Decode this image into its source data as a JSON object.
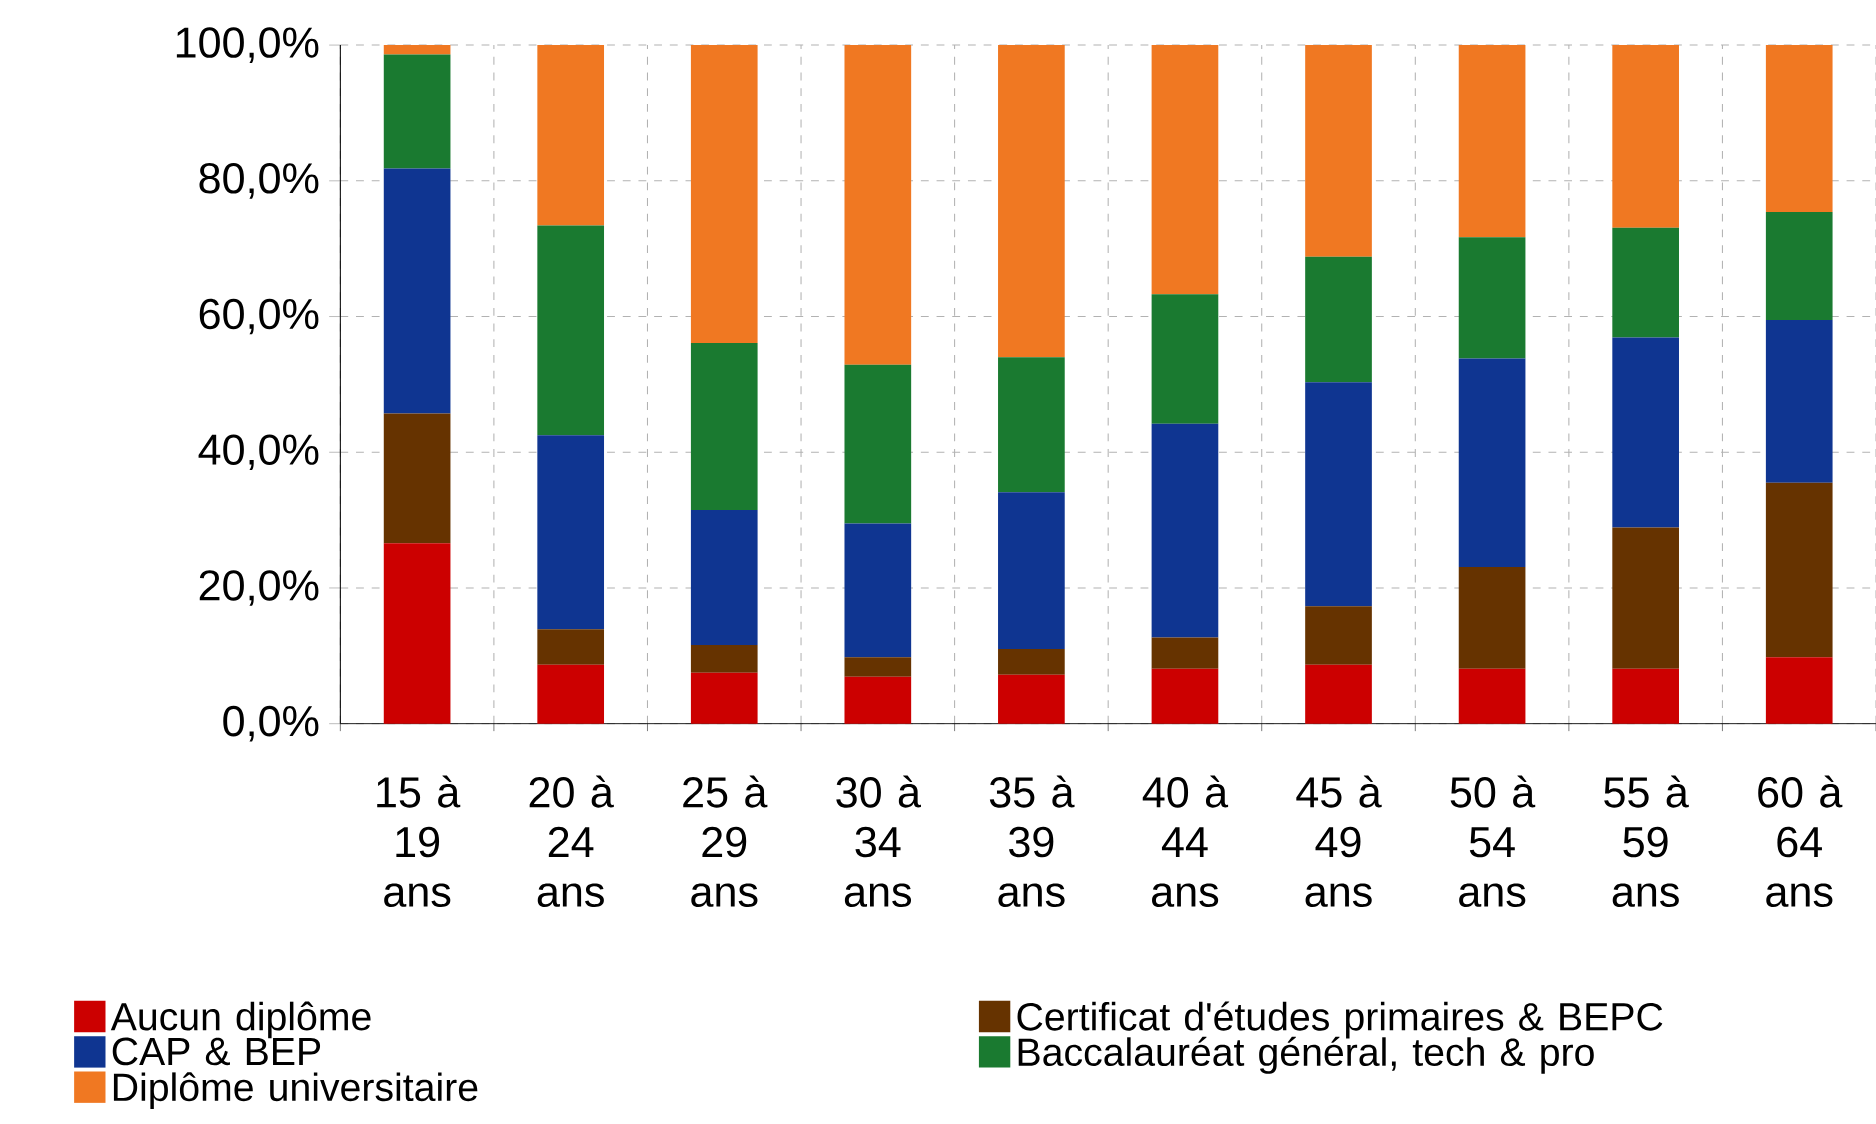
{
  "chart_data": {
    "type": "bar",
    "stacked": true,
    "grid": true,
    "legend": "bottom",
    "categories": [
      "15 à 19 ans",
      "20 à 24 ans",
      "25 à 29 ans",
      "30 à 34 ans",
      "35 à 39 ans",
      "40 à 44 ans",
      "45 à 49 ans",
      "50 à 54 ans",
      "55 à 59 ans",
      "60 à 64 ans"
    ],
    "ylim": [
      0,
      100
    ],
    "yticks": [
      {
        "value": 0,
        "label": "0,0%"
      },
      {
        "value": 20,
        "label": "20,0%"
      },
      {
        "value": 40,
        "label": "40,0%"
      },
      {
        "value": 60,
        "label": "60,0%"
      },
      {
        "value": 80,
        "label": "80,0%"
      },
      {
        "value": 100,
        "label": "100,0%"
      }
    ],
    "series": [
      {
        "name": "Aucun diplôme",
        "color": "#cc0000",
        "values": [
          26.6,
          8.7,
          7.5,
          6.9,
          7.2,
          8.1,
          8.7,
          8.1,
          8.1,
          9.8
        ]
      },
      {
        "name": "Certificat d'études primaires & BEPC",
        "color": "#663300",
        "values": [
          19.1,
          5.2,
          4.1,
          2.9,
          3.8,
          4.6,
          8.6,
          15.0,
          20.8,
          25.7
        ]
      },
      {
        "name": "CAP & BEP",
        "color": "#0f3591",
        "values": [
          36.1,
          28.6,
          19.9,
          19.7,
          23.1,
          31.5,
          33.0,
          30.7,
          28.0,
          24.0
        ]
      },
      {
        "name": "Baccalauréat général, tech & pro",
        "color": "#1a7a30",
        "values": [
          16.8,
          30.9,
          24.6,
          23.4,
          19.9,
          19.1,
          18.5,
          17.9,
          16.2,
          15.9
        ]
      },
      {
        "name": "Diplôme universitaire",
        "color": "#f07822",
        "values": [
          1.4,
          26.6,
          43.9,
          47.1,
          46.0,
          36.7,
          31.2,
          28.3,
          26.9,
          24.6
        ]
      }
    ]
  }
}
